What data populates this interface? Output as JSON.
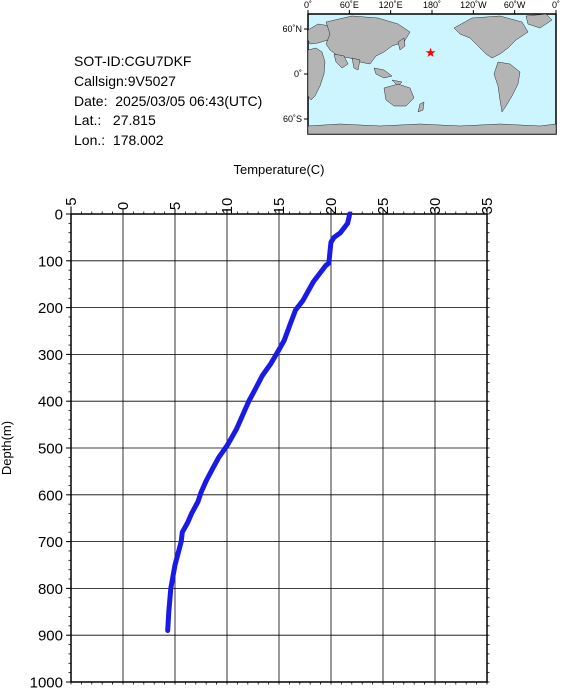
{
  "meta": {
    "sot_id": "SOT-ID:CGU7DKF",
    "callsign": "Callsign:9V5027",
    "date": "Date:  2025/03/05 06:43(UTC)",
    "lat": "Lat.:   27.815",
    "lon": "Lon.:  178.002"
  },
  "map": {
    "lon_labels": [
      "0˚",
      "60˚E",
      "120˚E",
      "180˚",
      "120˚W",
      "60˚W",
      "0˚"
    ],
    "lat_labels": [
      "60˚N",
      "0˚",
      "60˚S"
    ],
    "ocean_color": "#ccf5ff",
    "land_color": "#b4b4b4",
    "marker_color": "#ff0000",
    "marker": {
      "lat": 27.815,
      "lon": 178.002
    }
  },
  "chart_data": {
    "type": "line",
    "xlabel": "Temperature(C)",
    "ylabel": "Depth(m)",
    "xlim": [
      -5,
      35
    ],
    "ylim": [
      1000,
      0
    ],
    "x_ticks": [
      -5,
      0,
      5,
      10,
      15,
      20,
      25,
      30,
      35
    ],
    "y_ticks": [
      0,
      100,
      200,
      300,
      400,
      500,
      600,
      700,
      800,
      900,
      1000
    ],
    "grid": true,
    "line_color": "#1a1ae6",
    "series": [
      {
        "x": [
          21.8,
          21.6,
          20.9,
          20.3,
          20.0,
          19.9,
          19.8,
          19.5,
          18.3,
          17.8,
          17.3,
          16.6,
          16.0,
          15.5,
          15.0,
          14.2,
          13.4,
          12.7,
          12.1,
          11.5,
          10.9,
          10.0,
          9.2,
          8.6,
          8.0,
          7.5,
          7.2,
          6.6,
          6.2,
          5.7,
          5.6,
          5.3,
          5.0,
          4.8,
          4.6,
          4.4,
          4.3
        ],
        "y": [
          0,
          20,
          40,
          50,
          60,
          80,
          105,
          110,
          145,
          165,
          185,
          205,
          240,
          270,
          290,
          320,
          345,
          375,
          400,
          430,
          460,
          495,
          520,
          545,
          570,
          595,
          615,
          640,
          660,
          680,
          700,
          725,
          750,
          775,
          800,
          850,
          890
        ]
      }
    ]
  }
}
